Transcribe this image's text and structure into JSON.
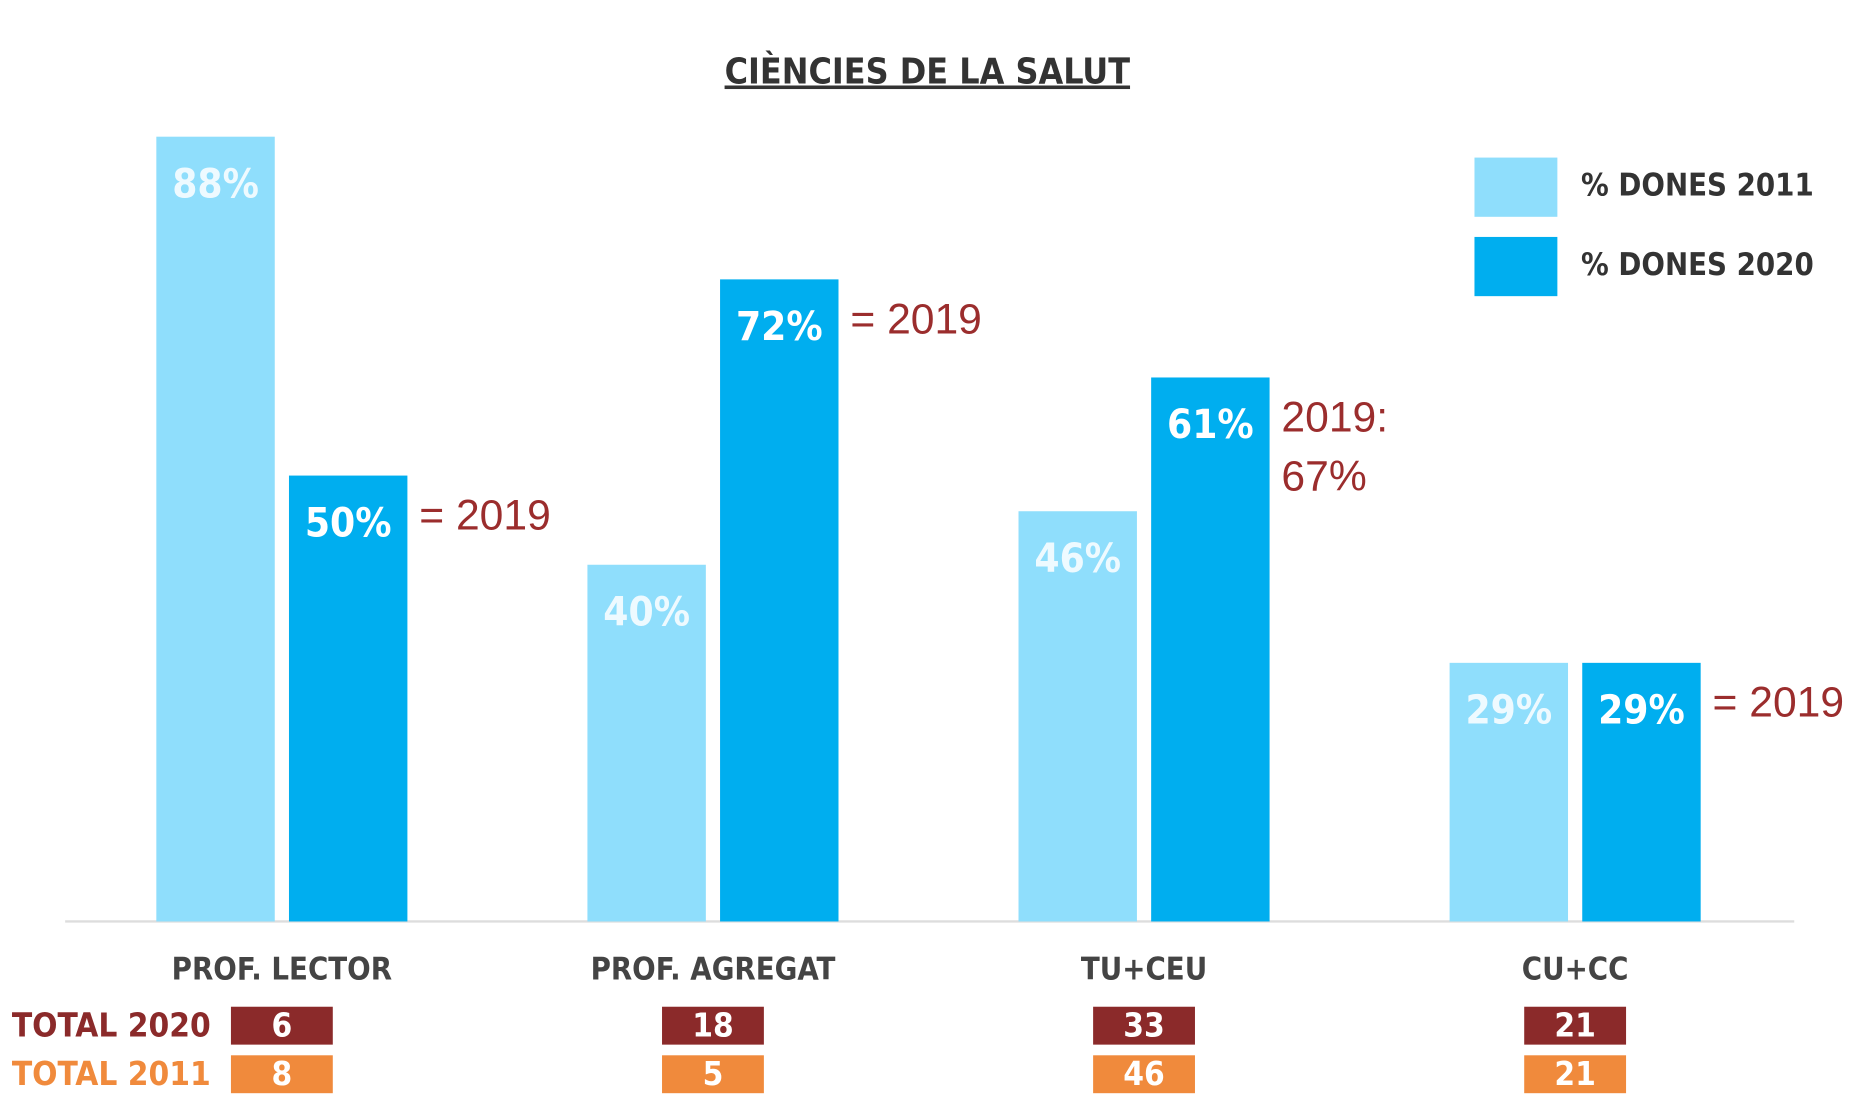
{
  "chart_data": {
    "type": "bar",
    "subtitle": "CIÈNCIES DE LA SALUT",
    "categories": [
      "PROF. LECTOR",
      "PROF. AGREGAT",
      "TU+CEU",
      "CU+CC"
    ],
    "series": [
      {
        "name": "% DONES 2011",
        "color": "#8fdefc",
        "values": [
          88,
          40,
          46,
          29
        ],
        "value_labels": [
          "88%",
          "40%",
          "46%",
          "29%"
        ]
      },
      {
        "name": "% DONES 2020",
        "color": "#00aeef",
        "values": [
          50,
          72,
          61,
          29
        ],
        "value_labels": [
          "50%",
          "72%",
          "61%",
          "29%"
        ]
      }
    ],
    "annotations": [
      [
        "= 2019"
      ],
      [
        "= 2019"
      ],
      [
        "2019:",
        "67%"
      ],
      [
        "= 2019"
      ]
    ],
    "totals": [
      {
        "name": "TOTAL 2020",
        "color": "#8b2a2a",
        "values": [
          6,
          18,
          33,
          21
        ]
      },
      {
        "name": "TOTAL 2011",
        "color": "#f08a3c",
        "values": [
          8,
          5,
          46,
          21
        ]
      }
    ]
  }
}
